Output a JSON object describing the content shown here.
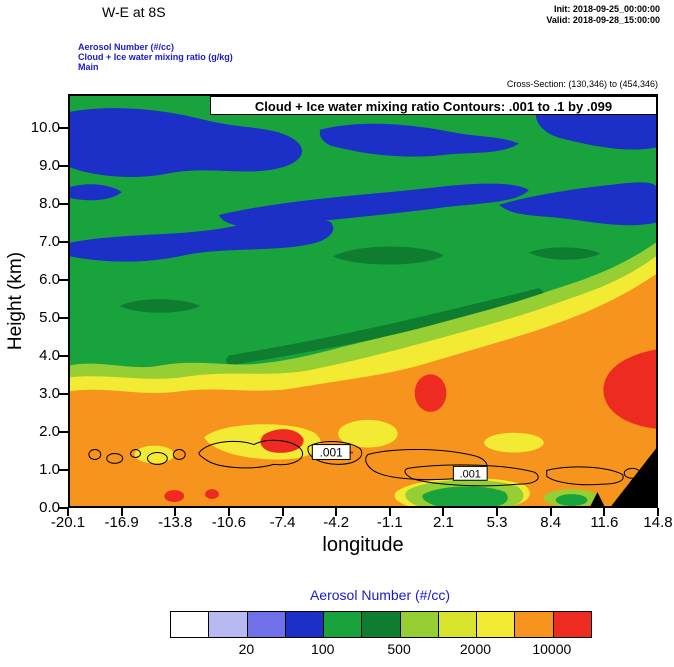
{
  "header": {
    "title": "W-E at 8S",
    "init": "Init: 2018-09-25_00:00:00",
    "valid": "Valid: 2018-09-28_15:00:00",
    "field_lines": [
      "Aerosol Number  (#/cc)",
      "Cloud + Ice water mixing ratio  (g/kg)",
      "Main"
    ],
    "cross_section": "Cross-Section: (130,346) to (454,346)"
  },
  "plot": {
    "inner_title": "Cloud + Ice water mixing ratio Contours: .001 to .1 by .099",
    "ylabel": "Height (km)",
    "xlabel": "longitude",
    "y_ticks": [
      "0.0",
      "1.0",
      "2.0",
      "3.0",
      "4.0",
      "5.0",
      "6.0",
      "7.0",
      "8.0",
      "9.0",
      "10.0"
    ],
    "x_ticks": [
      "-20.1",
      "-16.9",
      "-13.8",
      "-10.6",
      "-7.4",
      "-4.2",
      "-1.1",
      "2.1",
      "5.3",
      "8.4",
      "11.6",
      "14.8"
    ],
    "contour_label": ".001"
  },
  "colorbar": {
    "title": "Aerosol Number  (#/cc)",
    "colors": [
      "#ffffff",
      "#b9b9f2",
      "#7070e8",
      "#1c30c8",
      "#18a33c",
      "#0f7d2f",
      "#96cf33",
      "#d8e32b",
      "#f2ea33",
      "#f7941e",
      "#ee2b20"
    ],
    "labels": [
      "20",
      "100",
      "500",
      "2000",
      "10000"
    ],
    "label_boundary_indices": [
      2,
      4,
      6,
      8,
      10
    ]
  },
  "palette": {
    "white": "#ffffff",
    "lavender": "#b9b9f2",
    "blue_violet": "#7070e8",
    "dark_blue": "#1c30c8",
    "green": "#18a33c",
    "dark_green": "#0f7d2f",
    "light_green": "#96cf33",
    "yellow_green": "#d8e32b",
    "yellow": "#f2ea33",
    "orange": "#f7941e",
    "red": "#ee2b20",
    "header_blue": "#1a1acc"
  },
  "chart_data": {
    "type": "heatmap",
    "subtype": "filled-contour-cross-section",
    "title": "W-E at 8S",
    "xlabel": "longitude",
    "ylabel": "Height (km)",
    "xlim": [
      -20.1,
      14.8
    ],
    "ylim": [
      0,
      10.9
    ],
    "x_ticks": [
      -20.1,
      -16.9,
      -13.8,
      -10.6,
      -7.4,
      -4.2,
      -1.1,
      2.1,
      5.3,
      8.4,
      11.6,
      14.8
    ],
    "y_ticks": [
      0,
      1,
      2,
      3,
      4,
      5,
      6,
      7,
      8,
      9,
      10
    ],
    "fill_field": "Aerosol Number",
    "fill_units": "#/cc",
    "fill_levels": [
      10,
      20,
      50,
      100,
      200,
      500,
      1000,
      2000,
      5000,
      10000
    ],
    "fill_colors": [
      "#ffffff",
      "#b9b9f2",
      "#7070e8",
      "#1c30c8",
      "#18a33c",
      "#0f7d2f",
      "#96cf33",
      "#d8e32b",
      "#f2ea33",
      "#f7941e",
      "#ee2b20"
    ],
    "grid_lons": [
      -20.1,
      -16.9,
      -13.8,
      -10.6,
      -7.4,
      -4.2,
      -1.1,
      2.1,
      5.3,
      8.4,
      11.6,
      14.8
    ],
    "grid_heights_km_top_to_bottom": [
      10,
      9,
      8,
      7,
      6,
      5,
      4,
      3,
      2,
      1,
      0
    ],
    "estimated_values": [
      [
        75,
        150,
        150,
        150,
        75,
        150,
        150,
        150,
        150,
        150,
        75,
        75
      ],
      [
        75,
        75,
        150,
        150,
        150,
        150,
        150,
        150,
        75,
        150,
        150,
        150
      ],
      [
        150,
        150,
        75,
        150,
        150,
        75,
        75,
        75,
        150,
        75,
        150,
        150
      ],
      [
        75,
        150,
        150,
        150,
        75,
        150,
        150,
        150,
        150,
        150,
        150,
        300
      ],
      [
        150,
        300,
        150,
        150,
        150,
        150,
        75,
        150,
        150,
        300,
        700,
        1500
      ],
      [
        300,
        150,
        300,
        300,
        300,
        300,
        150,
        300,
        700,
        1500,
        3000,
        3000
      ],
      [
        700,
        700,
        300,
        700,
        700,
        700,
        700,
        1500,
        3000,
        3000,
        7000,
        7000
      ],
      [
        3000,
        1500,
        3000,
        3000,
        3000,
        3000,
        7000,
        7000,
        7000,
        7000,
        7000,
        15000
      ],
      [
        7000,
        7000,
        7000,
        7000,
        7000,
        7000,
        7000,
        7000,
        7000,
        7000,
        7000,
        15000
      ],
      [
        7000,
        7000,
        7000,
        3000,
        15000,
        3000,
        7000,
        7000,
        7000,
        7000,
        7000,
        7000
      ],
      [
        7000,
        7000,
        7000,
        7000,
        7000,
        3000,
        700,
        300,
        1500,
        7000,
        7000,
        null
      ]
    ],
    "overlay_contours": {
      "field": "Cloud + Ice water mixing ratio",
      "units": "g/kg",
      "levels": [
        0.001,
        0.1
      ],
      "step": 0.099,
      "label_text": ".001",
      "description": "closed black contours between ~0.5 and 1.8 km across most of the section, labeled .001 near lon -5 (1.5 km) and lon 2 (0.8 km)"
    },
    "terrain_mask": "black wedge at bottom-right, lon ~13.2 to 14.8, rising to ~1.4 km at right edge",
    "legend_position": "bottom",
    "grid": false
  }
}
